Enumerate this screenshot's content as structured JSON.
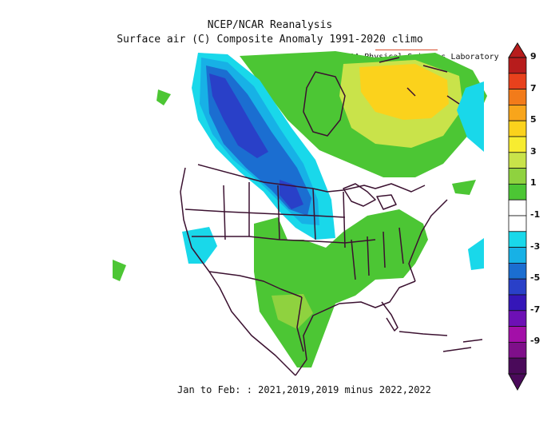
{
  "header": {
    "title_line1": "NCEP/NCAR Reanalysis",
    "title_line2": "Surface air (C) Composite Anomaly 1991-2020 climo",
    "credit": "NOAA Physical Sciences Laboratory"
  },
  "footer": {
    "period": "Jan to Feb: : 2021,2019,2019 minus 2022,2022"
  },
  "colorbar": {
    "labels": [
      "9",
      "7",
      "5",
      "3",
      "1",
      "-1",
      "-3",
      "-5",
      "-7",
      "-9"
    ],
    "colors": [
      "#b71c1c",
      "#e8411c",
      "#f27b1a",
      "#f8a51b",
      "#fbd21c",
      "#f7ec30",
      "#c9e34a",
      "#8fd23f",
      "#4cc634",
      "#ffffff",
      "#ffffff",
      "#19d8ea",
      "#17b1e6",
      "#1b6ed1",
      "#2940c8",
      "#3516b8",
      "#6d10b5",
      "#a30fa8",
      "#7f0f8a",
      "#4a0a5a"
    ]
  },
  "map": {
    "region": "North America",
    "fill_colors": {
      "warm_small": "#4cc634",
      "warm_mid": "#8fd23f",
      "warm_high": "#c9e34a",
      "warm_peak": "#fbd21c",
      "cool_small": "#19d8ea",
      "cool_mid": "#17b1e6",
      "cool_high": "#1b6ed1",
      "cool_peak": "#2940c8",
      "borders": "#3b1130"
    }
  }
}
